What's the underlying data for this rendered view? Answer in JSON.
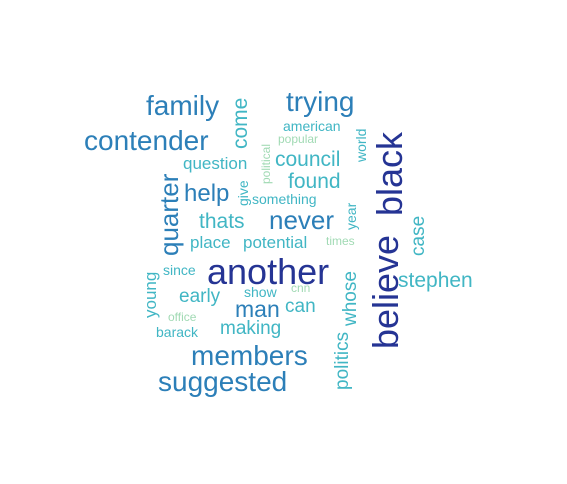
{
  "palette": {
    "dark_blue": "#253494",
    "blue": "#2c7fb8",
    "teal": "#41b6c4",
    "light_green": "#a1dab4"
  },
  "words": [
    {
      "text": "another",
      "color": "dark_blue",
      "weight": 1.0
    },
    {
      "text": "believe",
      "color": "dark_blue",
      "weight": 1.0
    },
    {
      "text": "black",
      "color": "dark_blue",
      "weight": 1.0
    },
    {
      "text": "contender",
      "color": "blue",
      "weight": 0.78
    },
    {
      "text": "family",
      "color": "blue",
      "weight": 0.78
    },
    {
      "text": "trying",
      "color": "blue",
      "weight": 0.78
    },
    {
      "text": "members",
      "color": "blue",
      "weight": 0.78
    },
    {
      "text": "suggested",
      "color": "blue",
      "weight": 0.78
    },
    {
      "text": "quarter",
      "color": "blue",
      "weight": 0.72
    },
    {
      "text": "never",
      "color": "blue",
      "weight": 0.72
    },
    {
      "text": "help",
      "color": "blue",
      "weight": 0.66
    },
    {
      "text": "man",
      "color": "blue",
      "weight": 0.66
    },
    {
      "text": "come",
      "color": "teal",
      "weight": 0.58
    },
    {
      "text": "council",
      "color": "teal",
      "weight": 0.58
    },
    {
      "text": "found",
      "color": "teal",
      "weight": 0.58
    },
    {
      "text": "thats",
      "color": "teal",
      "weight": 0.58
    },
    {
      "text": "stephen",
      "color": "teal",
      "weight": 0.58
    },
    {
      "text": "early",
      "color": "teal",
      "weight": 0.55
    },
    {
      "text": "making",
      "color": "teal",
      "weight": 0.55
    },
    {
      "text": "can",
      "color": "teal",
      "weight": 0.55
    },
    {
      "text": "whose",
      "color": "teal",
      "weight": 0.55
    },
    {
      "text": "politics",
      "color": "teal",
      "weight": 0.55
    },
    {
      "text": "case",
      "color": "teal",
      "weight": 0.55
    },
    {
      "text": "question",
      "color": "teal",
      "weight": 0.48
    },
    {
      "text": "place",
      "color": "teal",
      "weight": 0.48
    },
    {
      "text": "potential",
      "color": "teal",
      "weight": 0.48
    },
    {
      "text": "young",
      "color": "teal",
      "weight": 0.48
    },
    {
      "text": "american",
      "color": "teal",
      "weight": 0.42
    },
    {
      "text": "world",
      "color": "teal",
      "weight": 0.42
    },
    {
      "text": "year",
      "color": "teal",
      "weight": 0.42
    },
    {
      "text": "something",
      "color": "teal",
      "weight": 0.42
    },
    {
      "text": "since",
      "color": "teal",
      "weight": 0.42
    },
    {
      "text": "barack",
      "color": "teal",
      "weight": 0.42
    },
    {
      "text": "give",
      "color": "teal",
      "weight": 0.42
    },
    {
      "text": "show",
      "color": "teal",
      "weight": 0.42
    },
    {
      "text": "political",
      "color": "light_green",
      "weight": 0.36
    },
    {
      "text": "popular",
      "color": "light_green",
      "weight": 0.36
    },
    {
      "text": "times",
      "color": "light_green",
      "weight": 0.36
    },
    {
      "text": "cnn",
      "color": "light_green",
      "weight": 0.36
    },
    {
      "text": "office",
      "color": "light_green",
      "weight": 0.36
    }
  ]
}
